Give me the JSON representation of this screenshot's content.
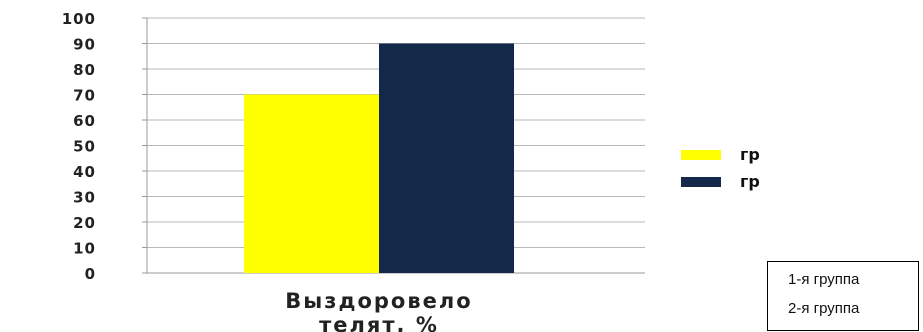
{
  "chart_data": {
    "type": "bar",
    "categories": [
      "Выздоровело телят, %"
    ],
    "category_label_lines": [
      "Выздоровело",
      "телят, %"
    ],
    "series": [
      {
        "name": "гр",
        "values": [
          70
        ],
        "color": "#ffff00"
      },
      {
        "name": "гр",
        "values": [
          90
        ],
        "color": "#14284a"
      }
    ],
    "ylim": [
      0,
      100
    ],
    "yticks": [
      0,
      10,
      20,
      30,
      40,
      50,
      60,
      70,
      80,
      90,
      100
    ],
    "grid": true,
    "legend": "right"
  },
  "note_box": {
    "lines": [
      "1-я группа",
      "2-я группа"
    ]
  }
}
